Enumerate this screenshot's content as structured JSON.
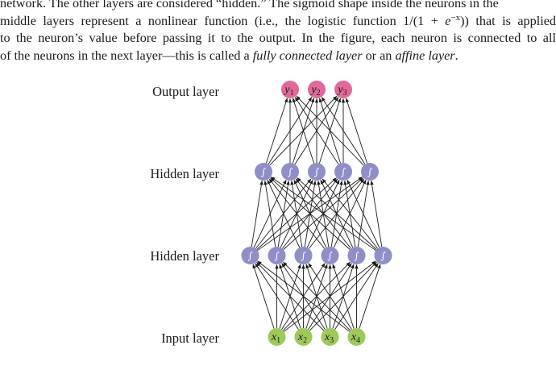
{
  "paragraph": {
    "line1": "network. The other layers are considered “hidden.” The sigmoid shape inside the neurons in the",
    "line2_a": "middle layers represent a nonlinear function (i.e., the logistic function 1/(1 + ",
    "line2_e": "e",
    "line2_sup": "−x",
    "line2_b": ")) that is applied",
    "line3": "to the neuron’s value before passing it to the output. In the figure, each neuron is connected to all",
    "line4_a": "of the neurons in the next layer—this is called a ",
    "line4_em1": "fully connected layer",
    "line4_b": " or an ",
    "line4_em2": "affine layer",
    "line4_c": "."
  },
  "figure": {
    "layers": [
      {
        "label": "Output layer",
        "kind": "output",
        "nodes": [
          {
            "var": "y",
            "sub": "1"
          },
          {
            "var": "y",
            "sub": "2"
          },
          {
            "var": "y",
            "sub": "3"
          }
        ]
      },
      {
        "label": "Hidden layer",
        "kind": "hidden",
        "count": 5,
        "symbol": "∫"
      },
      {
        "label": "Hidden layer",
        "kind": "hidden",
        "count": 6,
        "symbol": "∫"
      },
      {
        "label": "Input layer",
        "kind": "input",
        "nodes": [
          {
            "var": "x",
            "sub": "1"
          },
          {
            "var": "x",
            "sub": "2"
          },
          {
            "var": "x",
            "sub": "3"
          },
          {
            "var": "x",
            "sub": "4"
          }
        ]
      }
    ],
    "colors": {
      "output": "#e0699a",
      "hidden": "#8f8ec9",
      "input": "#9dca5a",
      "edge": "#1a1a1a"
    }
  }
}
